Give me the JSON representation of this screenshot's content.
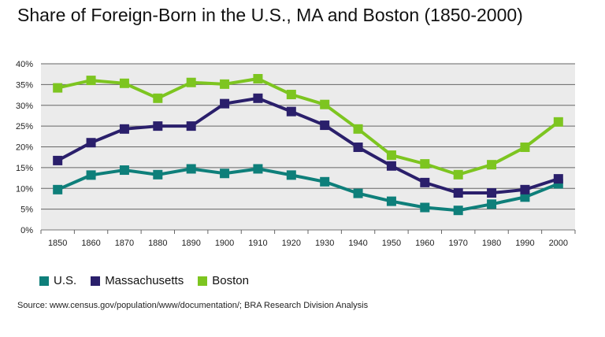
{
  "chart_data": {
    "type": "line",
    "title": "Share of Foreign-Born in the U.S., MA and Boston (1850-2000)",
    "categories": [
      "1850",
      "1860",
      "1870",
      "1880",
      "1890",
      "1900",
      "1910",
      "1920",
      "1930",
      "1940",
      "1950",
      "1960",
      "1970",
      "1980",
      "1990",
      "2000"
    ],
    "ylim": [
      0,
      40
    ],
    "yticks": [
      "0%",
      "5%",
      "10%",
      "15%",
      "20%",
      "25%",
      "30%",
      "35%",
      "40%"
    ],
    "grid": true,
    "legend_placement": "bottom-left",
    "series": [
      {
        "name": "U.S.",
        "color": "#0e7f7a",
        "values": [
          9.7,
          13.2,
          14.4,
          13.3,
          14.7,
          13.6,
          14.7,
          13.2,
          11.6,
          8.8,
          6.9,
          5.4,
          4.7,
          6.2,
          7.9,
          11.1
        ]
      },
      {
        "name": "Massachusetts",
        "color": "#2a1f6b",
        "values": [
          16.7,
          21.0,
          24.3,
          25.0,
          25.0,
          30.4,
          31.7,
          28.5,
          25.2,
          19.9,
          15.4,
          11.4,
          8.9,
          8.9,
          9.7,
          12.3
        ]
      },
      {
        "name": "Boston",
        "color": "#7dc520",
        "values": [
          34.2,
          36.0,
          35.3,
          31.7,
          35.5,
          35.1,
          36.4,
          32.6,
          30.2,
          24.3,
          18.0,
          15.9,
          13.3,
          15.7,
          19.9,
          26.0
        ]
      }
    ],
    "source": "Source: www.census.gov/population/www/documentation/; BRA Research Division Analysis"
  }
}
